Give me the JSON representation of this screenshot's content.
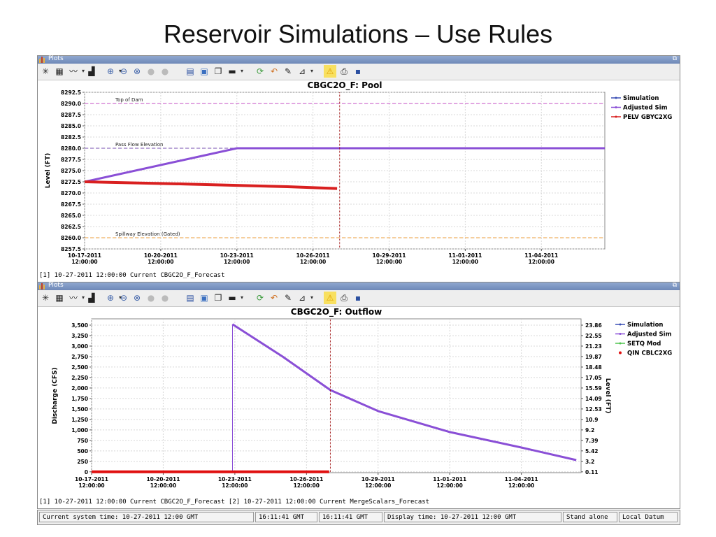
{
  "slide": {
    "title": "Reservoir Simulations – Use Rules"
  },
  "panels": [
    {
      "window_title": "Plots",
      "caption": "[1] 10-27-2011 12:00:00 Current CBGC2O_F_Forecast"
    },
    {
      "window_title": "Plots",
      "caption": "[1] 10-27-2011 12:00:00 Current CBGC2O_F_Forecast [2] 10-27-2011 12:00:00 Current MergeScalars_Forecast"
    }
  ],
  "toolbar_icons": [
    "crosshair-icon",
    "grid-icon",
    "line-style-icon",
    "bars-icon",
    "zoom-in-icon",
    "zoom-out-icon",
    "zoom-reset-icon",
    "stop-icon",
    "stop-icon",
    "table-icon",
    "chart-icon",
    "copy-icon",
    "paste-icon",
    "refresh-icon",
    "undo-icon",
    "edit-icon",
    "axis-icon",
    "warning-icon",
    "print-icon",
    "save-icon"
  ],
  "colors": {
    "simulation": "#3a4fb5",
    "adjusted_sim": "#8a4fd6",
    "pelv": "#d92020",
    "setq": "#4fc44f",
    "qin": "#e01010",
    "top_of_dam": "#d070d0",
    "pass_flow": "#9070c0",
    "spillway": "#f0b060",
    "marker": "#a01010"
  },
  "chart_data": [
    {
      "type": "line",
      "title": "CBGC2O_F: Pool",
      "ylabel": "Level (FT)",
      "ylim": [
        8257.5,
        8292.5
      ],
      "yticks": [
        "8257.5",
        "8260.0",
        "8262.5",
        "8265.0",
        "8267.5",
        "8270.0",
        "8272.5",
        "8275.0",
        "8277.5",
        "8280.0",
        "8282.5",
        "8285.0",
        "8287.5",
        "8290.0",
        "8292.5"
      ],
      "xlim_days": [
        0,
        20.5
      ],
      "xticks": [
        {
          "day": 0,
          "date": "10-17-2011",
          "time": "12:00:00"
        },
        {
          "day": 3,
          "date": "10-20-2011",
          "time": "12:00:00"
        },
        {
          "day": 6,
          "date": "10-23-2011",
          "time": "12:00:00"
        },
        {
          "day": 9,
          "date": "10-26-2011",
          "time": "12:00:00"
        },
        {
          "day": 12,
          "date": "10-29-2011",
          "time": "12:00:00"
        },
        {
          "day": 15,
          "date": "11-01-2011",
          "time": "12:00:00"
        },
        {
          "day": 18,
          "date": "11-04-2011",
          "time": "12:00:00"
        }
      ],
      "marker_day": 10.05,
      "reference_lines": [
        {
          "label": "Top of Dam",
          "value": 8290.0,
          "color_key": "top_of_dam"
        },
        {
          "label": "Pass Flow Elevation",
          "value": 8280.0,
          "color_key": "pass_flow"
        },
        {
          "label": "Spillway Elevation (Gated)",
          "value": 8260.0,
          "color_key": "spillway"
        }
      ],
      "legend": [
        {
          "name": "Simulation",
          "color_key": "simulation"
        },
        {
          "name": "Adjusted Sim",
          "color_key": "adjusted_sim"
        },
        {
          "name": "PELV GBYC2XG",
          "color_key": "pelv"
        }
      ],
      "series": [
        {
          "name": "Adjusted Sim",
          "color_key": "adjusted_sim",
          "width": 3,
          "points": [
            [
              0,
              8272.5
            ],
            [
              6,
              8280.0
            ],
            [
              20.5,
              8280.0
            ]
          ]
        },
        {
          "name": "PELV GBYC2XG",
          "color_key": "pelv",
          "width": 4,
          "points": [
            [
              0,
              8272.5
            ],
            [
              4,
              8272.0
            ],
            [
              8,
              8271.4
            ],
            [
              9.95,
              8271.0
            ]
          ]
        }
      ]
    },
    {
      "type": "line",
      "title": "CBGC2O_F: Outflow",
      "ylabel": "Discharge (CFS)",
      "ylabel_right": "Level (FT)",
      "ylim": [
        -20,
        3650
      ],
      "yticks": [
        "0",
        "250",
        "500",
        "750",
        "1,000",
        "1,250",
        "1,500",
        "1,750",
        "2,000",
        "2,250",
        "2,500",
        "2,750",
        "3,000",
        "3,250",
        "3,500"
      ],
      "yticks_right": [
        "0.11",
        "3.2",
        "5.42",
        "7.39",
        "9.2",
        "10.9",
        "12.53",
        "14.09",
        "15.59",
        "17.05",
        "18.48",
        "19.87",
        "21.23",
        "22.55",
        "23.86"
      ],
      "xlim_days": [
        0,
        20.5
      ],
      "xticks": [
        {
          "day": 0,
          "date": "10-17-2011",
          "time": "12:00:00"
        },
        {
          "day": 3,
          "date": "10-20-2011",
          "time": "12:00:00"
        },
        {
          "day": 6,
          "date": "10-23-2011",
          "time": "12:00:00"
        },
        {
          "day": 9,
          "date": "10-26-2011",
          "time": "12:00:00"
        },
        {
          "day": 12,
          "date": "10-29-2011",
          "time": "12:00:00"
        },
        {
          "day": 15,
          "date": "11-01-2011",
          "time": "12:00:00"
        },
        {
          "day": 18,
          "date": "11-04-2011",
          "time": "12:00:00"
        }
      ],
      "marker_day": 10.0,
      "legend": [
        {
          "name": "Simulation",
          "color_key": "simulation"
        },
        {
          "name": "Adjusted Sim",
          "color_key": "adjusted_sim"
        },
        {
          "name": "SETQ Mod",
          "color_key": "setq"
        },
        {
          "name": "QIN CBLC2XG",
          "color_key": "qin"
        }
      ],
      "series": [
        {
          "name": "Adjusted Sim",
          "color_key": "adjusted_sim",
          "width": 1,
          "points": [
            [
              5.9,
              0
            ],
            [
              5.9,
              3520
            ]
          ]
        },
        {
          "name": "Adjusted Sim",
          "color_key": "adjusted_sim",
          "width": 3,
          "points": [
            [
              5.9,
              3520
            ],
            [
              6.5,
              3300
            ],
            [
              8,
              2750
            ],
            [
              10,
              1950
            ],
            [
              12,
              1450
            ],
            [
              15,
              950
            ],
            [
              18,
              580
            ],
            [
              20.3,
              280
            ]
          ]
        },
        {
          "name": "QIN CBLC2XG",
          "color_key": "qin",
          "width": 4,
          "points": [
            [
              0,
              0
            ],
            [
              9.95,
              0
            ]
          ]
        }
      ]
    }
  ],
  "statusbar": {
    "current_time": "Current system time: 10-27-2011 12:00 GMT",
    "clock1": "16:11:41 GMT",
    "clock2": "16:11:41 GMT",
    "display_time": "Display time: 10-27-2011 12:00 GMT",
    "mode": "Stand alone",
    "datum": "Local Datum"
  }
}
